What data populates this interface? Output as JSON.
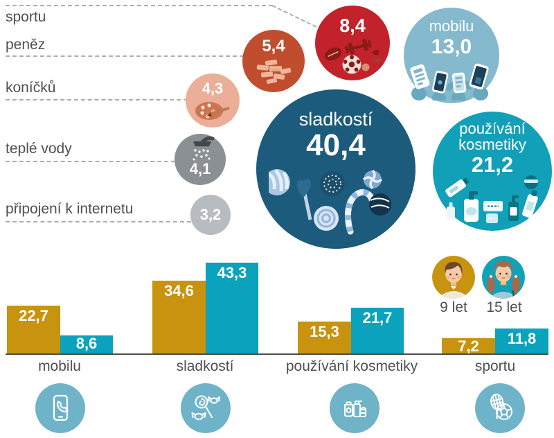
{
  "palette": {
    "gold": "#C8930E",
    "teal_bar": "#0AA2BC",
    "dark_blue": "#1D5B7C",
    "light_blue": "#85B9CD",
    "teal_bubble": "#12A0B8",
    "red": "#C2232A",
    "rust": "#C04E2E",
    "salmon": "#EBAE98",
    "gray": "#8A9093",
    "light_gray": "#B7BCC1",
    "icon_circle_blue": "#6FB3C9",
    "text_gray": "#4F5054"
  },
  "left_panel": {
    "items": [
      {
        "label": "sportu"
      },
      {
        "label": "peněz"
      },
      {
        "label": "koníčků"
      },
      {
        "label": "teplé vody"
      },
      {
        "label": "připojení k internetu"
      }
    ]
  },
  "bubbles": {
    "sportu": {
      "value": "8,4",
      "icon": "sports-gear-icon",
      "color": "#C2232A"
    },
    "penez": {
      "value": "5,4",
      "icon": "money-icon",
      "color": "#C04E2E"
    },
    "konicku": {
      "value": "4,3",
      "icon": "paint-palette-icon",
      "color": "#EBAE98"
    },
    "tepla_voda": {
      "value": "4,1",
      "icon": "shower-icon",
      "color": "#8A9093"
    },
    "internet": {
      "value": "3,2",
      "icon": "none",
      "color": "#B7BCC1"
    },
    "sladkosti": {
      "label": "sladkostí",
      "value": "40,4",
      "icon": "candies-icon",
      "color": "#1D5B7C"
    },
    "mobilu": {
      "label": "mobilu",
      "value": "13,0",
      "icon": "phones-in-hands-icon",
      "color": "#85B9CD"
    },
    "kosmetika": {
      "label_line1": "používání",
      "label_line2": "kosmetiky",
      "value": "21,2",
      "icon": "cosmetics-bottles-icon",
      "color": "#12A0B8"
    }
  },
  "bar_chart": {
    "categories": [
      {
        "label": "mobilu",
        "icon": "phone-icon"
      },
      {
        "label": "sladkostí",
        "icon": "candy-icon"
      },
      {
        "label": "používání kosmetiky",
        "icon": "cosmetics-icon"
      },
      {
        "label": "sportu",
        "icon": "sport-icon"
      }
    ],
    "values_display": {
      "age9": [
        "22,7",
        "34,6",
        "15,3",
        "7,2"
      ],
      "age15": [
        "8,6",
        "43,3",
        "21,7",
        "11,8"
      ]
    },
    "legend": {
      "age9": "9 let",
      "age15": "15 let"
    }
  },
  "chart_data": [
    {
      "type": "bubble",
      "title": "",
      "items": [
        {
          "label": "sladkostí",
          "value": 40.4,
          "color": "#1D5B7C"
        },
        {
          "label": "používání kosmetiky",
          "value": 21.2,
          "color": "#12A0B8"
        },
        {
          "label": "mobilu",
          "value": 13.0,
          "color": "#85B9CD"
        },
        {
          "label": "sportu",
          "value": 8.4,
          "color": "#C2232A"
        },
        {
          "label": "peněz",
          "value": 5.4,
          "color": "#C04E2E"
        },
        {
          "label": "koníčků",
          "value": 4.3,
          "color": "#EBAE98"
        },
        {
          "label": "teplé vody",
          "value": 4.1,
          "color": "#8A9093"
        },
        {
          "label": "připojení k internetu",
          "value": 3.2,
          "color": "#B7BCC1"
        }
      ]
    },
    {
      "type": "bar",
      "categories": [
        "mobilu",
        "sladkostí",
        "používání kosmetiky",
        "sportu"
      ],
      "series": [
        {
          "name": "9 let",
          "values": [
            22.7,
            34.6,
            15.3,
            7.2
          ],
          "color": "#C8930E"
        },
        {
          "name": "15 let",
          "values": [
            8.6,
            43.3,
            21.7,
            11.8
          ],
          "color": "#0AA2BC"
        }
      ],
      "ylim": [
        0,
        45
      ],
      "grid": false,
      "legend_position": "top-right",
      "value_labels": "inside-top"
    }
  ]
}
